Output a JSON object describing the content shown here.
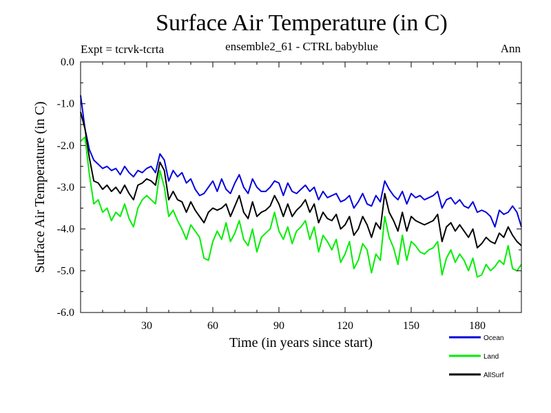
{
  "header": {
    "title": "Surface Air Temperature (in C)",
    "subtitle": "ensemble2_61 - CTRL babyblue",
    "expt": "Expt = tcrvk-tcrta",
    "period": "Ann"
  },
  "chart_data": {
    "type": "line",
    "title": "Surface Air Temperature (in C)",
    "subtitle": "ensemble2_61 - CTRL babyblue",
    "xlabel": "Time (in years since start)",
    "ylabel": "Surface Air Temperature (in C)",
    "xlim": [
      0,
      200
    ],
    "ylim": [
      -6.0,
      0.0
    ],
    "xticks": [
      30,
      60,
      90,
      120,
      150,
      180
    ],
    "xtick_labels": [
      "30",
      "60",
      "90",
      "120",
      "150",
      "180"
    ],
    "yticks": [
      0.0,
      -1.0,
      -2.0,
      -3.0,
      -4.0,
      -5.0,
      -6.0
    ],
    "ytick_labels": [
      "0.0",
      "-1.0",
      "-2.0",
      "-3.0",
      "-4.0",
      "-5.0",
      "-6.0"
    ],
    "grid": false,
    "legend_position": "bottom-right, below plot",
    "series": [
      {
        "name": "Ocean",
        "color": "#0000dd",
        "x": [
          0,
          2,
          4,
          6,
          8,
          10,
          12,
          14,
          16,
          18,
          20,
          22,
          24,
          26,
          28,
          30,
          32,
          34,
          36,
          38,
          40,
          42,
          44,
          46,
          48,
          50,
          52,
          54,
          56,
          58,
          60,
          62,
          64,
          66,
          68,
          70,
          72,
          74,
          76,
          78,
          80,
          82,
          84,
          86,
          88,
          90,
          92,
          94,
          96,
          98,
          100,
          102,
          104,
          106,
          108,
          110,
          112,
          114,
          116,
          118,
          120,
          122,
          124,
          126,
          128,
          130,
          132,
          134,
          136,
          138,
          140,
          142,
          144,
          146,
          148,
          150,
          152,
          154,
          156,
          158,
          160,
          162,
          164,
          166,
          168,
          170,
          172,
          174,
          176,
          178,
          180,
          182,
          184,
          186,
          188,
          190,
          192,
          194,
          196,
          198,
          200
        ],
        "values": [
          -0.8,
          -1.6,
          -2.1,
          -2.35,
          -2.45,
          -2.55,
          -2.5,
          -2.6,
          -2.55,
          -2.7,
          -2.5,
          -2.65,
          -2.75,
          -2.6,
          -2.65,
          -2.55,
          -2.5,
          -2.65,
          -2.2,
          -2.35,
          -2.85,
          -2.6,
          -2.75,
          -2.65,
          -2.9,
          -2.8,
          -3.05,
          -3.2,
          -3.15,
          -3.0,
          -2.85,
          -3.1,
          -2.8,
          -3.05,
          -3.15,
          -2.9,
          -2.7,
          -3.0,
          -3.15,
          -2.8,
          -3.0,
          -3.1,
          -3.1,
          -3.0,
          -2.85,
          -2.9,
          -3.2,
          -2.9,
          -3.1,
          -3.15,
          -3.05,
          -2.95,
          -3.1,
          -3.0,
          -3.3,
          -3.1,
          -3.25,
          -3.2,
          -3.15,
          -3.35,
          -3.3,
          -3.2,
          -3.5,
          -3.35,
          -3.15,
          -3.4,
          -3.45,
          -3.2,
          -3.35,
          -2.85,
          -3.05,
          -3.2,
          -3.3,
          -3.1,
          -3.4,
          -3.15,
          -3.25,
          -3.2,
          -3.3,
          -3.25,
          -3.2,
          -3.1,
          -3.5,
          -3.3,
          -3.25,
          -3.4,
          -3.3,
          -3.45,
          -3.5,
          -3.35,
          -3.6,
          -3.55,
          -3.6,
          -3.7,
          -3.95,
          -3.55,
          -3.65,
          -3.6,
          -3.45,
          -3.6,
          -3.95
        ]
      },
      {
        "name": "Land",
        "color": "#00ee00",
        "x": [
          0,
          2,
          4,
          6,
          8,
          10,
          12,
          14,
          16,
          18,
          20,
          22,
          24,
          26,
          28,
          30,
          32,
          34,
          36,
          38,
          40,
          42,
          44,
          46,
          48,
          50,
          52,
          54,
          56,
          58,
          60,
          62,
          64,
          66,
          68,
          70,
          72,
          74,
          76,
          78,
          80,
          82,
          84,
          86,
          88,
          90,
          92,
          94,
          96,
          98,
          100,
          102,
          104,
          106,
          108,
          110,
          112,
          114,
          116,
          118,
          120,
          122,
          124,
          126,
          128,
          130,
          132,
          134,
          136,
          138,
          140,
          142,
          144,
          146,
          148,
          150,
          152,
          154,
          156,
          158,
          160,
          162,
          164,
          166,
          168,
          170,
          172,
          174,
          176,
          178,
          180,
          182,
          184,
          186,
          188,
          190,
          192,
          194,
          196,
          198,
          200
        ],
        "values": [
          -1.9,
          -1.8,
          -2.7,
          -3.4,
          -3.3,
          -3.6,
          -3.5,
          -3.8,
          -3.6,
          -3.7,
          -3.4,
          -3.75,
          -3.95,
          -3.5,
          -3.3,
          -3.2,
          -3.3,
          -3.4,
          -2.6,
          -3.0,
          -3.7,
          -3.55,
          -3.8,
          -4.0,
          -4.25,
          -3.9,
          -4.05,
          -4.2,
          -4.7,
          -4.75,
          -4.3,
          -4.05,
          -4.25,
          -3.85,
          -4.3,
          -4.1,
          -3.8,
          -4.25,
          -4.4,
          -4.0,
          -4.55,
          -4.2,
          -4.1,
          -4.0,
          -3.6,
          -4.05,
          -4.25,
          -3.95,
          -4.35,
          -4.05,
          -3.95,
          -3.8,
          -4.25,
          -3.95,
          -4.55,
          -4.15,
          -4.3,
          -4.5,
          -4.25,
          -4.8,
          -4.6,
          -4.3,
          -4.95,
          -4.75,
          -4.35,
          -4.5,
          -5.05,
          -4.6,
          -4.75,
          -3.7,
          -4.2,
          -4.45,
          -4.85,
          -4.15,
          -4.75,
          -4.3,
          -4.4,
          -4.55,
          -4.6,
          -4.5,
          -4.45,
          -4.3,
          -5.1,
          -4.7,
          -4.5,
          -4.8,
          -4.6,
          -4.75,
          -5.0,
          -4.7,
          -5.15,
          -5.1,
          -4.85,
          -5.0,
          -4.9,
          -4.75,
          -4.85,
          -4.4,
          -4.95,
          -5.0,
          -4.85
        ]
      },
      {
        "name": "AllSurf",
        "color": "#000000",
        "x": [
          0,
          2,
          4,
          6,
          8,
          10,
          12,
          14,
          16,
          18,
          20,
          22,
          24,
          26,
          28,
          30,
          32,
          34,
          36,
          38,
          40,
          42,
          44,
          46,
          48,
          50,
          52,
          54,
          56,
          58,
          60,
          62,
          64,
          66,
          68,
          70,
          72,
          74,
          76,
          78,
          80,
          82,
          84,
          86,
          88,
          90,
          92,
          94,
          96,
          98,
          100,
          102,
          104,
          106,
          108,
          110,
          112,
          114,
          116,
          118,
          120,
          122,
          124,
          126,
          128,
          130,
          132,
          134,
          136,
          138,
          140,
          142,
          144,
          146,
          148,
          150,
          152,
          154,
          156,
          158,
          160,
          162,
          164,
          166,
          168,
          170,
          172,
          174,
          176,
          178,
          180,
          182,
          184,
          186,
          188,
          190,
          192,
          194,
          196,
          198,
          200
        ],
        "values": [
          -1.2,
          -1.6,
          -2.3,
          -2.85,
          -2.9,
          -3.05,
          -2.95,
          -3.1,
          -3.0,
          -3.15,
          -2.95,
          -3.15,
          -3.3,
          -2.95,
          -2.9,
          -2.8,
          -2.85,
          -2.95,
          -2.4,
          -2.6,
          -3.3,
          -3.1,
          -3.3,
          -3.35,
          -3.6,
          -3.35,
          -3.55,
          -3.7,
          -3.85,
          -3.6,
          -3.5,
          -3.55,
          -3.5,
          -3.4,
          -3.7,
          -3.45,
          -3.2,
          -3.6,
          -3.75,
          -3.35,
          -3.7,
          -3.6,
          -3.55,
          -3.45,
          -3.2,
          -3.4,
          -3.7,
          -3.4,
          -3.7,
          -3.55,
          -3.45,
          -3.3,
          -3.6,
          -3.4,
          -3.85,
          -3.6,
          -3.75,
          -3.8,
          -3.65,
          -4.0,
          -3.9,
          -3.7,
          -4.15,
          -4.0,
          -3.7,
          -3.9,
          -4.2,
          -3.85,
          -4.0,
          -3.15,
          -3.6,
          -3.8,
          -4.05,
          -3.6,
          -4.05,
          -3.7,
          -3.8,
          -3.85,
          -3.9,
          -3.85,
          -3.8,
          -3.65,
          -4.3,
          -3.95,
          -3.85,
          -4.05,
          -3.9,
          -4.05,
          -4.2,
          -4.0,
          -4.45,
          -4.35,
          -4.2,
          -4.3,
          -4.35,
          -4.1,
          -4.2,
          -3.95,
          -4.15,
          -4.3,
          -4.4
        ]
      }
    ]
  }
}
